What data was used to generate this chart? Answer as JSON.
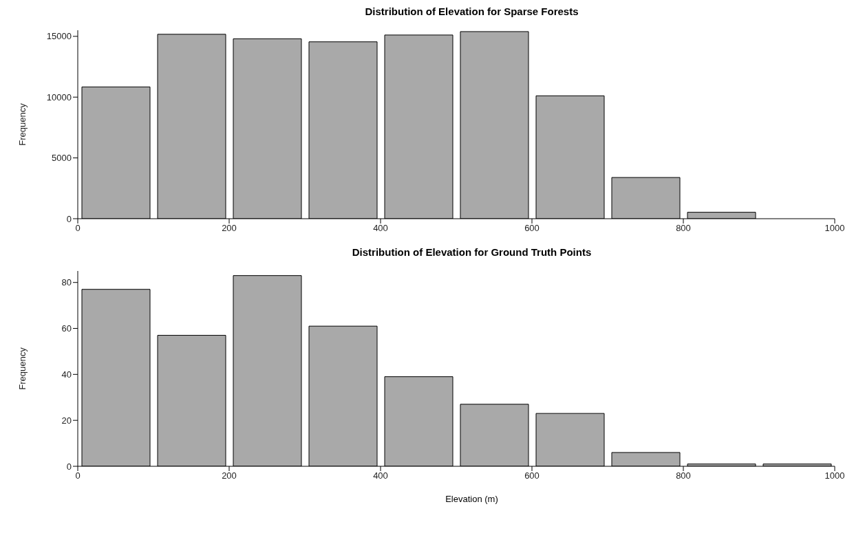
{
  "chart_data": [
    {
      "type": "histogram",
      "title": "Distribution of Elevation for Sparse Forests",
      "ylabel": "Frequency",
      "bins": [
        0,
        100,
        200,
        300,
        400,
        500,
        600,
        700,
        800,
        900,
        1000
      ],
      "values": [
        10840,
        15170,
        14800,
        14550,
        15110,
        15390,
        10110,
        3390,
        530,
        0
      ],
      "color": "#a9a9a9",
      "xlim": [
        0,
        1000
      ],
      "xticks": [
        0,
        200,
        400,
        600,
        800,
        1000
      ],
      "ylim": [
        0,
        15500
      ],
      "yticks": [
        0,
        5000,
        10000,
        15000
      ],
      "grid": false
    },
    {
      "type": "histogram",
      "title": "Distribution of Elevation for Ground Truth Points",
      "xlabel": "Elevation (m)",
      "ylabel": "Frequency",
      "bins": [
        0,
        100,
        200,
        300,
        400,
        500,
        600,
        700,
        800,
        900,
        1000
      ],
      "values": [
        77,
        57,
        83,
        61,
        39,
        27,
        23,
        6,
        1,
        1
      ],
      "color": "#a9a9a9",
      "xlim": [
        0,
        1000
      ],
      "xticks": [
        0,
        200,
        400,
        600,
        800,
        1000
      ],
      "ylim": [
        0,
        85
      ],
      "yticks": [
        0,
        20,
        40,
        60,
        80
      ],
      "grid": false
    }
  ]
}
